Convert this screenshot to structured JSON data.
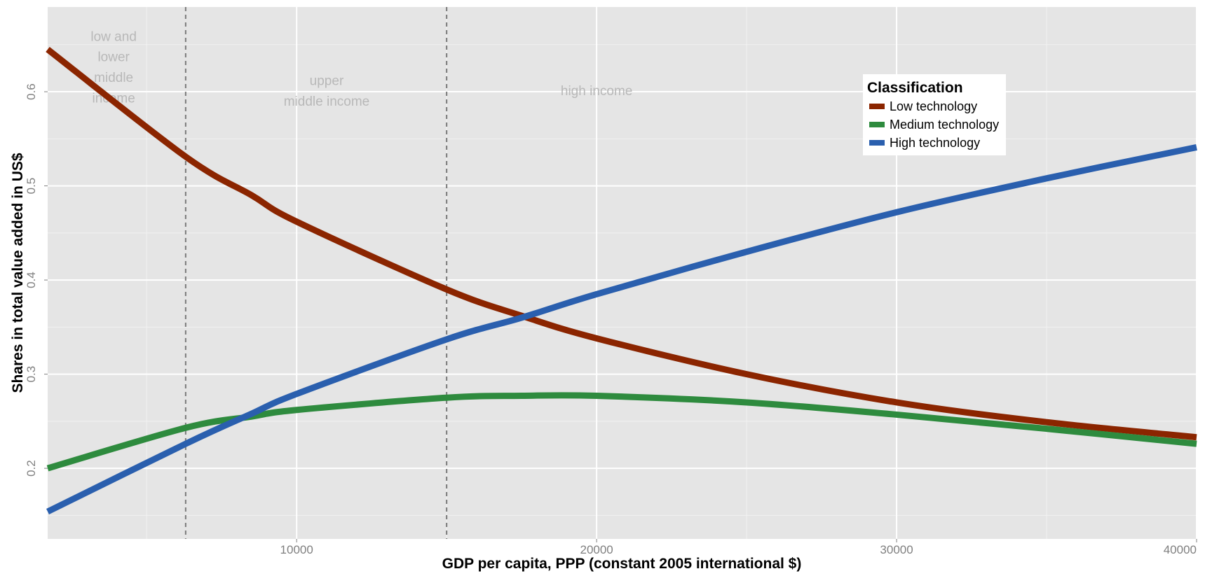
{
  "chart_data": {
    "type": "line",
    "title": "",
    "xlabel": "GDP per capita, PPP (constant 2005 international $)",
    "ylabel": "Shares in total value added in US$",
    "xlim": [
      1700,
      40000
    ],
    "ylim": [
      0.125,
      0.69
    ],
    "x_ticks": [
      10000,
      20000,
      30000,
      40000
    ],
    "x_tick_labels": [
      "10000",
      "20000",
      "30000",
      "40000"
    ],
    "y_ticks": [
      0.2,
      0.3,
      0.4,
      0.5,
      0.6
    ],
    "y_tick_labels": [
      "0.2",
      "0.3",
      "0.4",
      "0.5",
      "0.6"
    ],
    "grid": true,
    "legend": {
      "title": "Classification",
      "position": "top-right"
    },
    "x": [
      1700,
      6300,
      8500,
      10000,
      15000,
      17500,
      20000,
      25000,
      30000,
      35000,
      40000
    ],
    "series": [
      {
        "name": "Low technology",
        "color": "#8B2500",
        "values": [
          0.645,
          0.531,
          0.49,
          0.462,
          0.39,
          0.362,
          0.338,
          0.3,
          0.27,
          0.249,
          0.233
        ]
      },
      {
        "name": "Medium technology",
        "color": "#2E8B3E",
        "values": [
          0.2,
          0.243,
          0.255,
          0.262,
          0.275,
          0.277,
          0.277,
          0.27,
          0.257,
          0.242,
          0.226
        ]
      },
      {
        "name": "High technology",
        "color": "#2A5FAE",
        "values": [
          0.154,
          0.226,
          0.258,
          0.279,
          0.337,
          0.36,
          0.385,
          0.43,
          0.472,
          0.508,
          0.541
        ]
      }
    ],
    "vlines": [
      6300,
      15000
    ],
    "annotations": [
      {
        "lines": [
          "low and",
          "lower",
          "middle",
          "income"
        ],
        "x": 3900,
        "y": 0.625
      },
      {
        "lines": [
          "upper",
          "middle income"
        ],
        "x": 11000,
        "y": 0.6
      },
      {
        "lines": [
          "high income"
        ],
        "x": 20000,
        "y": 0.6
      }
    ]
  }
}
